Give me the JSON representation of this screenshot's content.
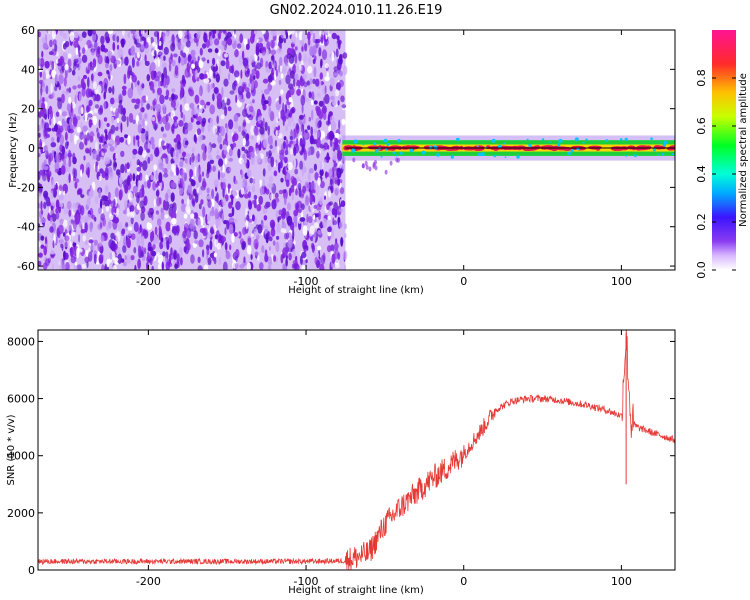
{
  "title": "GN02.2024.010.11.26.E19",
  "chart_data": [
    {
      "type": "heatmap",
      "xlabel": "Height of straight line (km)",
      "ylabel": "Frequency (Hz)",
      "xlim": [
        -270,
        134
      ],
      "ylim": [
        -62,
        60
      ],
      "x_ticks": [
        "-200",
        "-100",
        "0",
        "100"
      ],
      "y_ticks": [
        "60",
        "40",
        "20",
        "0",
        "-20",
        "-40",
        "-60"
      ],
      "colorbar": {
        "label": "Normalized spectral amplitude",
        "range": [
          0,
          1
        ],
        "ticks": [
          "0.0",
          "0.2",
          "0.4",
          "0.6",
          "0.8"
        ]
      },
      "noise_region_x": [
        -270,
        -75
      ],
      "signal_band": {
        "x": [
          -77,
          134
        ],
        "center_hz": 0,
        "half_width_hz": 4
      },
      "colors": {
        "noise": "#7b1fe0",
        "signal_core": "#e0194c",
        "signal_edge": "#1ecf3c",
        "reference_line": "#000000"
      }
    },
    {
      "type": "line",
      "xlabel": "Height of straight line (km)",
      "ylabel": "SNR (10 * v/v)",
      "xlim": [
        -270,
        134
      ],
      "ylim": [
        0,
        8400
      ],
      "x_ticks": [
        "-200",
        "-100",
        "0",
        "100"
      ],
      "y_ticks": [
        "0",
        "2000",
        "4000",
        "6000",
        "8000"
      ],
      "series_color": "#e53935",
      "series": [
        {
          "x": [
            -270,
            -200,
            -150,
            -100,
            -75,
            -60,
            -50,
            -40,
            -30,
            -20,
            -10,
            0,
            10,
            20,
            30,
            40,
            50,
            60,
            70,
            80,
            90,
            100,
            103,
            106,
            110,
            120,
            134
          ],
          "y": [
            300,
            300,
            300,
            300,
            320,
            600,
            1600,
            2200,
            2700,
            3200,
            3600,
            4100,
            4800,
            5600,
            5900,
            6000,
            6000,
            5950,
            5850,
            5750,
            5600,
            5400,
            8300,
            5200,
            5000,
            4800,
            4550
          ]
        }
      ]
    }
  ]
}
